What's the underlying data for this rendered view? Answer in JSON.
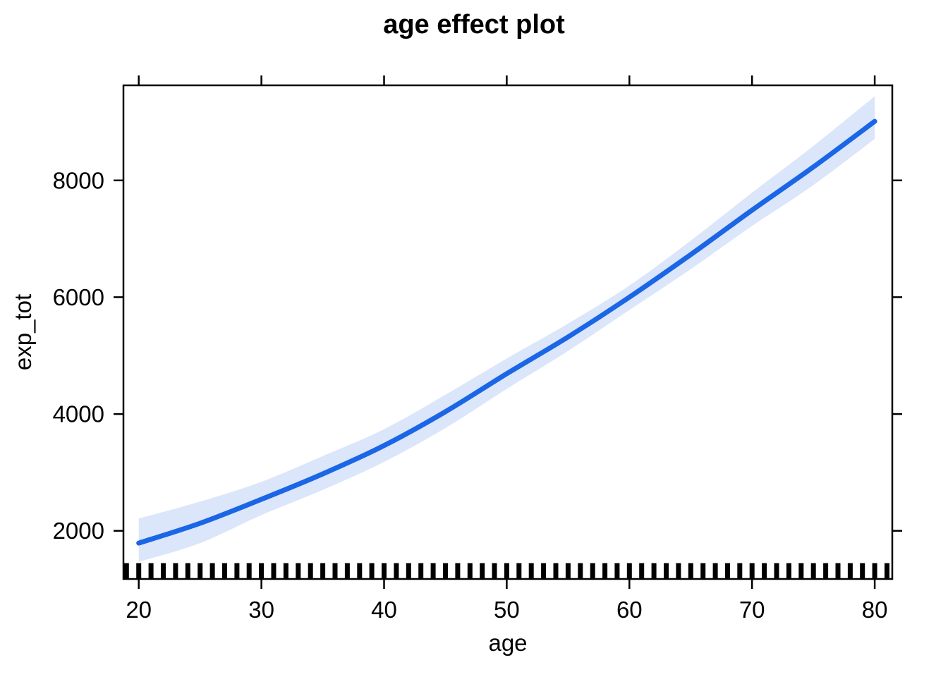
{
  "chart_data": {
    "type": "line",
    "title": "age effect plot",
    "xlabel": "age",
    "ylabel": "exp_tot",
    "x": [
      20,
      25,
      30,
      35,
      40,
      45,
      50,
      55,
      60,
      65,
      70,
      75,
      80
    ],
    "series": [
      {
        "name": "fitted effect",
        "values": [
          1790,
          2130,
          2540,
          2975,
          3460,
          4040,
          4690,
          5320,
          6000,
          6730,
          7490,
          8230,
          9010
        ]
      },
      {
        "name": "upper confidence band",
        "values": [
          2210,
          2500,
          2840,
          3280,
          3740,
          4330,
          4950,
          5550,
          6200,
          6970,
          7790,
          8590,
          9440
        ]
      },
      {
        "name": "lower confidence band",
        "values": [
          1470,
          1790,
          2270,
          2700,
          3180,
          3760,
          4430,
          5080,
          5780,
          6480,
          7220,
          7920,
          8710
        ]
      }
    ],
    "x_ticks": [
      20,
      30,
      40,
      50,
      60,
      70,
      80
    ],
    "y_ticks": [
      2000,
      4000,
      6000,
      8000
    ],
    "xlim": [
      18.75,
      81.43
    ],
    "ylim": [
      1176,
      9627
    ],
    "rug_ages": [
      19,
      20,
      21,
      22,
      23,
      24,
      25,
      26,
      27,
      28,
      29,
      30,
      31,
      32,
      33,
      34,
      35,
      36,
      37,
      38,
      39,
      40,
      41,
      42,
      43,
      44,
      45,
      46,
      47,
      48,
      49,
      50,
      51,
      52,
      53,
      54,
      55,
      56,
      57,
      58,
      59,
      60,
      61,
      62,
      63,
      64,
      65,
      66,
      67,
      68,
      69,
      70,
      71,
      72,
      73,
      74,
      75,
      76,
      77,
      78,
      79,
      80,
      81
    ],
    "grid": false,
    "legend": "none",
    "colors": {
      "line": "#1a66e6",
      "band": "#dbe6fa",
      "axis": "#000000",
      "rug": "#000000",
      "background": "#ffffff"
    }
  }
}
